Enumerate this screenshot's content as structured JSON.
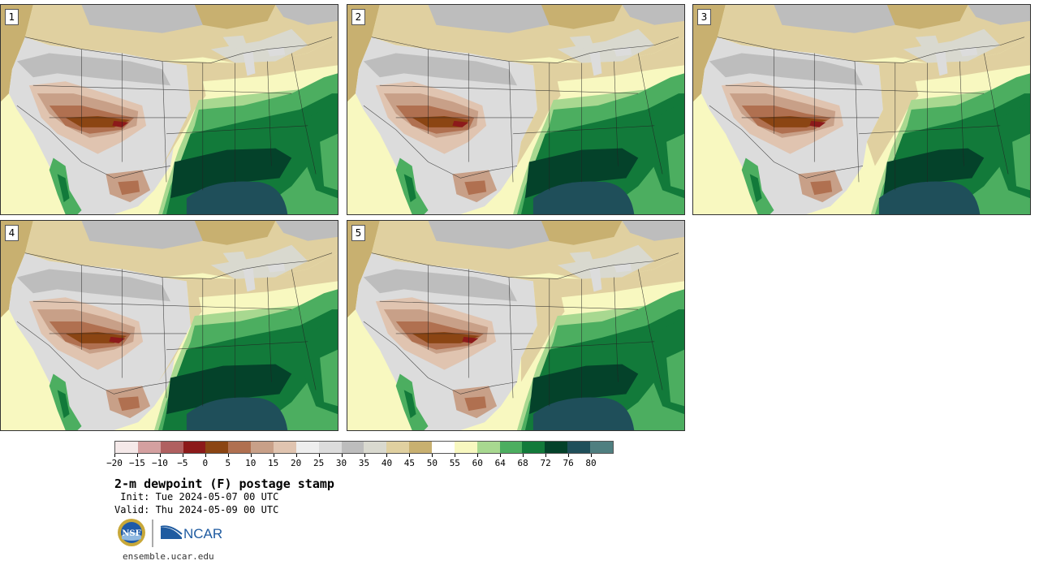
{
  "panels": [
    {
      "label": "1"
    },
    {
      "label": "2"
    },
    {
      "label": "3"
    },
    {
      "label": "4"
    },
    {
      "label": "5"
    }
  ],
  "colorbar": {
    "colors": [
      "#f5e9e9",
      "#d4a0a0",
      "#b06060",
      "#8c1a1a",
      "#8b4513",
      "#b07050",
      "#c8a088",
      "#e0c4b0",
      "#eeeeee",
      "#dcdcdc",
      "#bdbdbd",
      "#d9d9cf",
      "#e0d0a0",
      "#c8b070",
      "#ffffff",
      "#f8f8c0",
      "#a8d890",
      "#4cae60",
      "#127a3a",
      "#04422a",
      "#1f4f5a",
      "#4f7f80"
    ],
    "tick_labels": [
      "−20",
      "−15",
      "−10",
      "−5",
      "0",
      "5",
      "10",
      "15",
      "20",
      "25",
      "30",
      "35",
      "40",
      "45",
      "50",
      "55",
      "60",
      "64",
      "68",
      "72",
      "76",
      "80"
    ]
  },
  "title": "2-m dewpoint (F) postage stamp",
  "init": " Init: Tue 2024-05-07 00 UTC",
  "valid": "Valid: Thu 2024-05-09 00 UTC",
  "logos": {
    "nsf": "NSF",
    "ncar": "NCAR"
  },
  "website": "ensemble.ucar.edu"
}
